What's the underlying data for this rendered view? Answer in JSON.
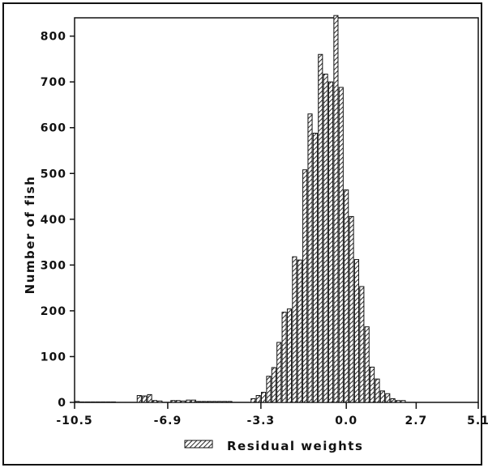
{
  "chart_data": {
    "type": "bar",
    "title": "",
    "xlabel": "",
    "ylabel": "Number of fish",
    "legend": {
      "label": "Residual weights",
      "placement": "bottom"
    },
    "x_ticks": [
      "-10.5",
      "-6.9",
      "-3.3",
      "0.0",
      "2.7",
      "5.1"
    ],
    "y_ticks": [
      "0",
      "100",
      "200",
      "300",
      "400",
      "500",
      "600",
      "700",
      "800"
    ],
    "xlim": [
      -10.5,
      5.1
    ],
    "ylim": [
      0,
      840
    ],
    "grid": false,
    "series": [
      {
        "name": "Residual weights",
        "points": [
          {
            "x": -10.4,
            "y": 2
          },
          {
            "x": -10.2,
            "y": 1
          },
          {
            "x": -10.0,
            "y": 1
          },
          {
            "x": -9.8,
            "y": 1
          },
          {
            "x": -9.6,
            "y": 1
          },
          {
            "x": -9.4,
            "y": 1
          },
          {
            "x": -9.2,
            "y": 1
          },
          {
            "x": -9.0,
            "y": 1
          },
          {
            "x": -8.0,
            "y": 15
          },
          {
            "x": -7.8,
            "y": 14
          },
          {
            "x": -7.6,
            "y": 17
          },
          {
            "x": -7.4,
            "y": 4
          },
          {
            "x": -7.2,
            "y": 3
          },
          {
            "x": -6.7,
            "y": 4
          },
          {
            "x": -6.5,
            "y": 4
          },
          {
            "x": -6.3,
            "y": 3
          },
          {
            "x": -6.1,
            "y": 5
          },
          {
            "x": -5.9,
            "y": 5
          },
          {
            "x": -5.7,
            "y": 2
          },
          {
            "x": -5.5,
            "y": 2
          },
          {
            "x": -5.3,
            "y": 2
          },
          {
            "x": -5.1,
            "y": 2
          },
          {
            "x": -4.9,
            "y": 2
          },
          {
            "x": -4.7,
            "y": 2
          },
          {
            "x": -4.5,
            "y": 2
          },
          {
            "x": -3.6,
            "y": 8
          },
          {
            "x": -3.4,
            "y": 15
          },
          {
            "x": -3.2,
            "y": 22
          },
          {
            "x": -3.0,
            "y": 57
          },
          {
            "x": -2.8,
            "y": 76
          },
          {
            "x": -2.6,
            "y": 131
          },
          {
            "x": -2.4,
            "y": 197
          },
          {
            "x": -2.2,
            "y": 204
          },
          {
            "x": -2.0,
            "y": 318
          },
          {
            "x": -1.8,
            "y": 311
          },
          {
            "x": -1.6,
            "y": 508
          },
          {
            "x": -1.4,
            "y": 630
          },
          {
            "x": -1.2,
            "y": 588
          },
          {
            "x": -1.0,
            "y": 760
          },
          {
            "x": -0.8,
            "y": 717
          },
          {
            "x": -0.6,
            "y": 700
          },
          {
            "x": -0.4,
            "y": 845
          },
          {
            "x": -0.2,
            "y": 688
          },
          {
            "x": 0.0,
            "y": 464
          },
          {
            "x": 0.2,
            "y": 406
          },
          {
            "x": 0.4,
            "y": 312
          },
          {
            "x": 0.6,
            "y": 253
          },
          {
            "x": 0.8,
            "y": 165
          },
          {
            "x": 1.0,
            "y": 77
          },
          {
            "x": 1.2,
            "y": 51
          },
          {
            "x": 1.4,
            "y": 25
          },
          {
            "x": 1.6,
            "y": 19
          },
          {
            "x": 1.8,
            "y": 8
          },
          {
            "x": 2.0,
            "y": 4
          },
          {
            "x": 2.2,
            "y": 4
          }
        ]
      }
    ]
  }
}
